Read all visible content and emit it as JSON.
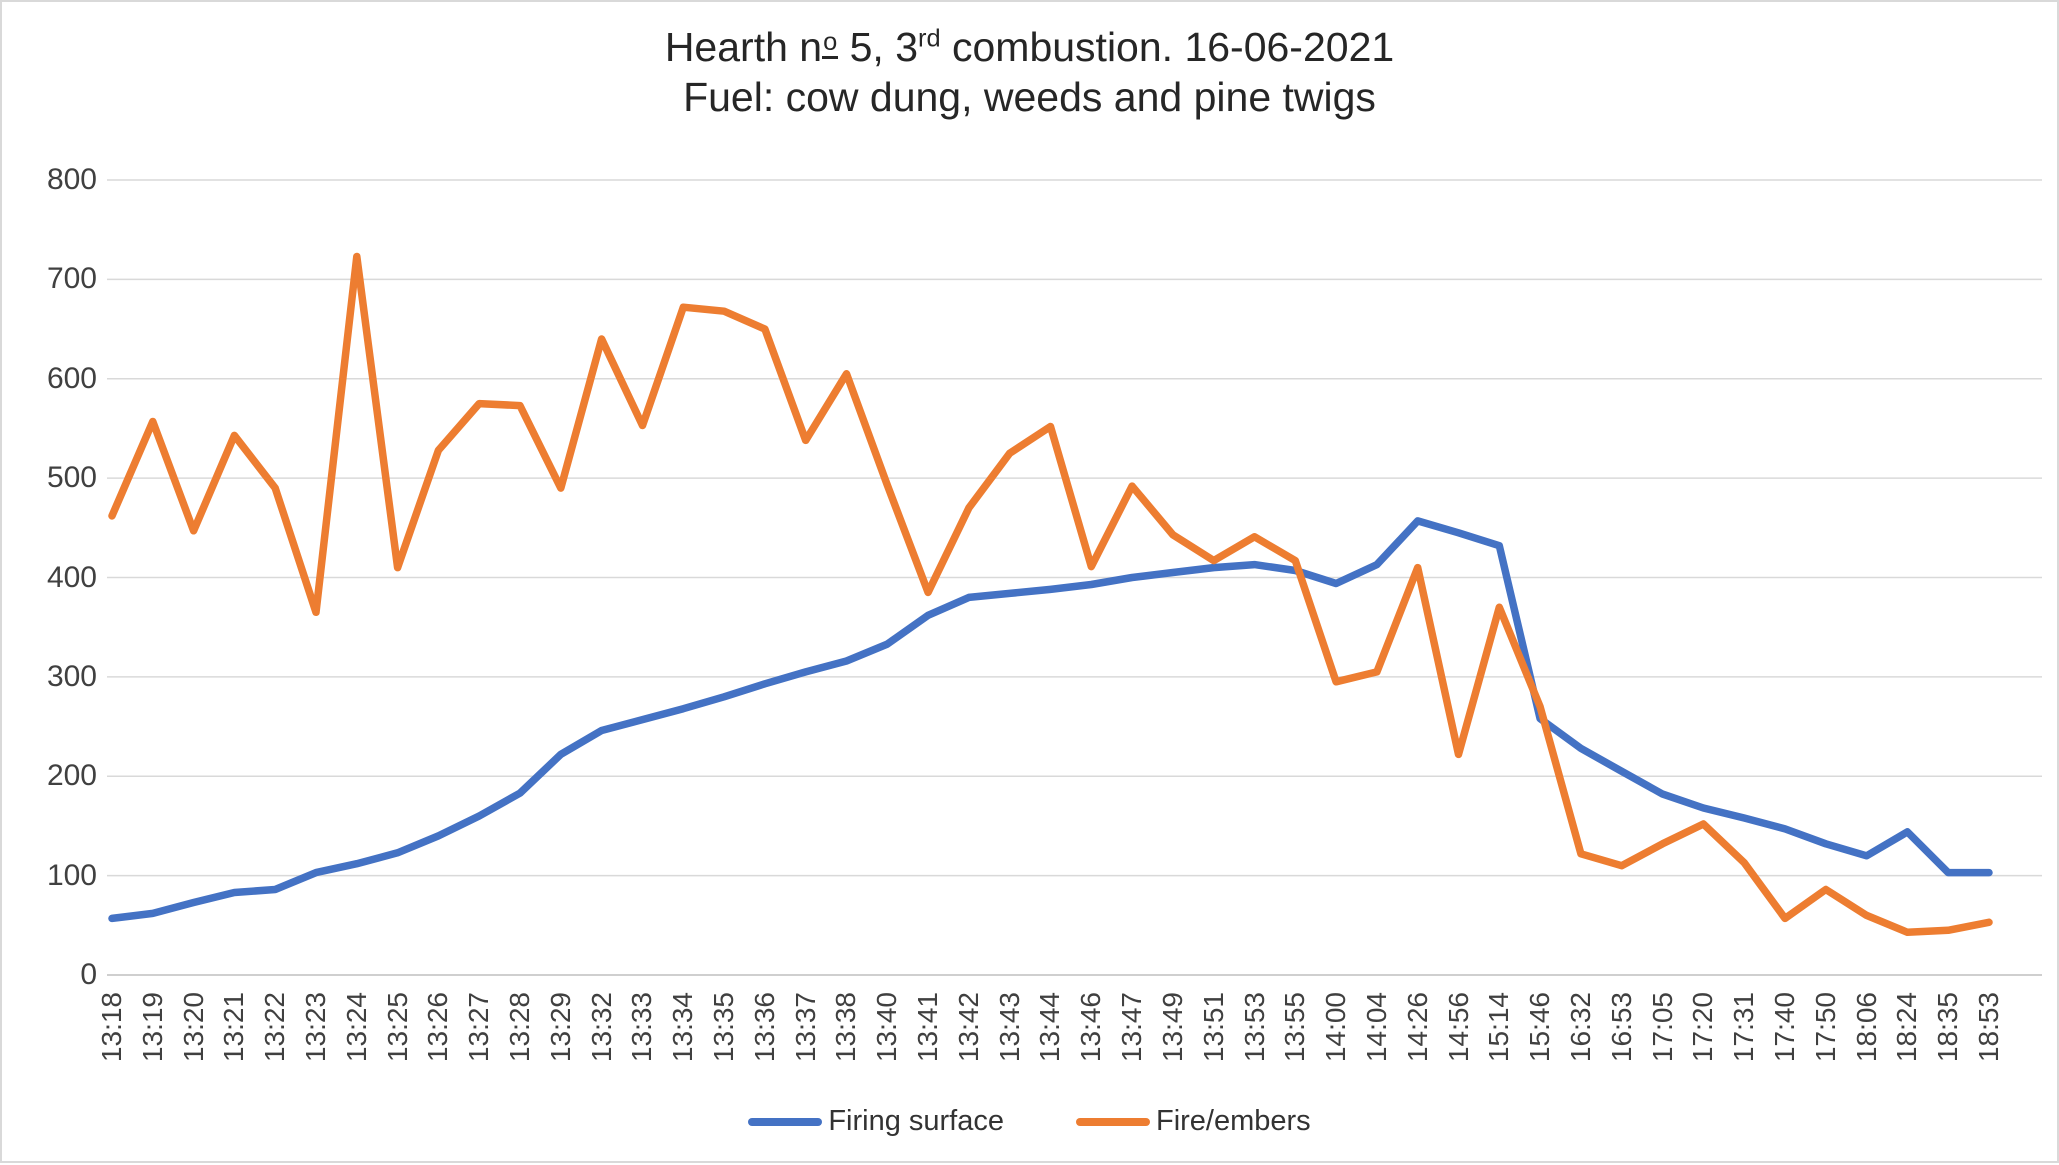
{
  "chart_data": {
    "type": "line",
    "title": "Hearth nº 5, 3rd combustion. 16-06-2021",
    "title_parts": {
      "pre": "Hearth n",
      "ordinal": "o",
      "mid": " 5, 3",
      "sup": "rd",
      "post": " combustion. 16-06-2021"
    },
    "subtitle": "Fuel: cow dung, weeds and pine twigs",
    "categories": [
      "13:18",
      "13:19",
      "13:20",
      "13:21",
      "13:22",
      "13:23",
      "13:24",
      "13:25",
      "13:26",
      "13:27",
      "13:28",
      "13:29",
      "13:32",
      "13:33",
      "13:34",
      "13:35",
      "13:36",
      "13:37",
      "13:38",
      "13:40",
      "13:41",
      "13:42",
      "13:43",
      "13:44",
      "13:46",
      "13:47",
      "13:49",
      "13:51",
      "13:53",
      "13:55",
      "14:00",
      "14:04",
      "14:26",
      "14:56",
      "15:14",
      "15:46",
      "16:32",
      "16:53",
      "17:05",
      "17:20",
      "17:31",
      "17:40",
      "17:50",
      "18:06",
      "18:24",
      "18:35",
      "18:53"
    ],
    "series": [
      {
        "name": "Firing surface",
        "color": "#4472C4",
        "values": [
          57,
          62,
          73,
          83,
          86,
          103,
          112,
          123,
          140,
          160,
          183,
          222,
          246,
          257,
          268,
          280,
          293,
          305,
          316,
          333,
          362,
          380,
          384,
          388,
          393,
          400,
          405,
          410,
          413,
          407,
          394,
          413,
          457,
          445,
          432,
          258,
          228,
          205,
          182,
          168,
          158,
          147,
          132,
          120,
          144,
          103,
          103
        ]
      },
      {
        "name": "Fire/embers",
        "color": "#ED7D31",
        "values": [
          462,
          557,
          447,
          543,
          490,
          365,
          723,
          410,
          528,
          575,
          573,
          490,
          640,
          553,
          672,
          668,
          650,
          538,
          605,
          493,
          385,
          470,
          525,
          552,
          411,
          492,
          443,
          417,
          441,
          417,
          295,
          305,
          410,
          222,
          370,
          270,
          122,
          110,
          132,
          152,
          113,
          57,
          86,
          60,
          43,
          45,
          53
        ]
      }
    ],
    "y_axis": {
      "min": 0,
      "max": 800,
      "step": 100,
      "tick_labels": [
        "0",
        "100",
        "200",
        "300",
        "400",
        "500",
        "600",
        "700",
        "800"
      ]
    },
    "x_axis_label_rotation": -90,
    "grid": true,
    "legend_position": "bottom",
    "gridline_color": "#D9D9D9",
    "axis_line_color": "#BFBFBF",
    "axis_text_color": "#404040",
    "title_color": "#262626",
    "background_color": "#FFFFFF"
  }
}
